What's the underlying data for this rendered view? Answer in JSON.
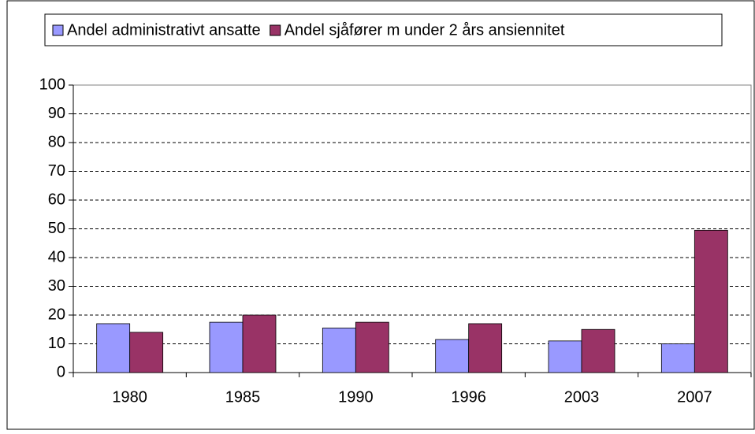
{
  "chart_data": {
    "type": "bar",
    "categories": [
      "1980",
      "1985",
      "1990",
      "1996",
      "2003",
      "2007"
    ],
    "series": [
      {
        "name": "Andel administrativt ansatte",
        "color": "#9999ff",
        "values": [
          17,
          17.5,
          15.5,
          11.5,
          11,
          10
        ]
      },
      {
        "name": "Andel sjåfører m under 2 års ansiennitet",
        "color": "#993366",
        "values": [
          14,
          20,
          17.5,
          17,
          15,
          49.5
        ]
      }
    ],
    "ylim": [
      0,
      100
    ],
    "yticks": [
      0,
      10,
      20,
      30,
      40,
      50,
      60,
      70,
      80,
      90,
      100
    ],
    "grid": true,
    "legend": "top"
  }
}
